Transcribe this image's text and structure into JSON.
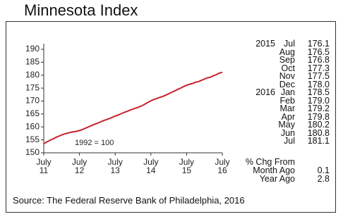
{
  "title": "Minnesota Index",
  "chart_data": {
    "type": "line",
    "annotation": "1992 = 100",
    "categories": [
      "July\n11",
      null,
      null,
      null,
      null,
      null,
      null,
      null,
      null,
      null,
      null,
      null,
      "July\n12",
      null,
      null,
      null,
      null,
      null,
      null,
      null,
      null,
      null,
      null,
      null,
      "July\n13",
      null,
      null,
      null,
      null,
      null,
      null,
      null,
      null,
      null,
      null,
      null,
      "July\n14",
      null,
      null,
      null,
      null,
      null,
      null,
      null,
      null,
      null,
      null,
      null,
      "July\n15",
      null,
      null,
      null,
      null,
      null,
      null,
      null,
      null,
      null,
      null,
      null,
      "July\n16"
    ],
    "series": [
      {
        "name": "Minnesota Index",
        "color": "#c8202a",
        "values": [
          153.5,
          154.2,
          154.8,
          155.3,
          155.9,
          156.4,
          156.9,
          157.3,
          157.6,
          157.9,
          158.1,
          158.3,
          158.6,
          159.0,
          159.5,
          160.0,
          160.5,
          161.0,
          161.4,
          161.9,
          162.4,
          162.8,
          163.2,
          163.7,
          164.2,
          164.6,
          165.1,
          165.6,
          166.0,
          166.5,
          166.9,
          167.3,
          167.7,
          168.2,
          168.8,
          169.5,
          170.1,
          170.6,
          171.0,
          171.4,
          171.8,
          172.3,
          172.8,
          173.4,
          173.9,
          174.5,
          175.0,
          175.6,
          176.1,
          176.5,
          176.8,
          177.3,
          177.5,
          178.0,
          178.5,
          179.0,
          179.2,
          179.8,
          180.2,
          180.8,
          181.1
        ]
      }
    ],
    "ylim": [
      150,
      190
    ],
    "yticks": [
      150,
      155,
      160,
      165,
      170,
      175,
      180,
      185,
      190
    ],
    "grid": false
  },
  "table": {
    "rows": [
      [
        "2015",
        "Jul",
        "176.1"
      ],
      [
        null,
        "Aug",
        "176.5"
      ],
      [
        null,
        "Sep",
        "176.8"
      ],
      [
        null,
        "Oct",
        "177.3"
      ],
      [
        null,
        "Nov",
        "177.5"
      ],
      [
        null,
        "Dec",
        "178.0"
      ],
      [
        "2016",
        "Jan",
        "178.5"
      ],
      [
        null,
        "Feb",
        "179.0"
      ],
      [
        null,
        "Mar",
        "179.2"
      ],
      [
        null,
        "Apr",
        "179.8"
      ],
      [
        null,
        "May",
        "180.2"
      ],
      [
        null,
        "Jun",
        "180.8"
      ],
      [
        null,
        "Jul",
        "181.1"
      ]
    ]
  },
  "change": {
    "heading": "% Chg From",
    "rows": [
      [
        "Month Ago",
        "0.1"
      ],
      [
        "Year Ago",
        "2.8"
      ]
    ]
  },
  "source": "Source: The Federal Reserve Bank of Philadelphia, 2016"
}
